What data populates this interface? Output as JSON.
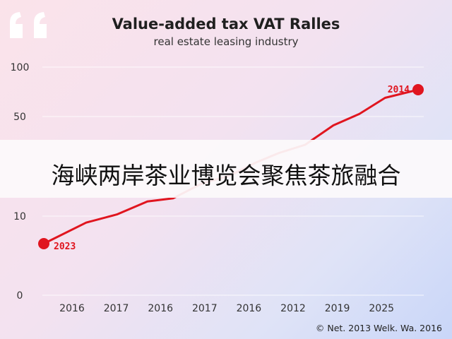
{
  "header": {
    "title": "Value-added tax VAT Ralles",
    "subtitle": "real estate leasing industry"
  },
  "banner": {
    "text": "海峡两岸茶业博览会聚焦茶旅融合"
  },
  "footer": {
    "credit": "© Net. 2013 Welk. Wa. 2016"
  },
  "colors": {
    "line": "#e0151f",
    "banner_bg": "#fbf9fa",
    "quote": "#ffffff"
  },
  "chart_data": {
    "type": "line",
    "title": "Value-added tax VAT Ralles",
    "subtitle": "real estate leasing industry",
    "categories": [
      "2016",
      "2017",
      "2016",
      "2017",
      "2016",
      "2012",
      "2019",
      "2025"
    ],
    "y_ticks": [
      {
        "label": "100",
        "value": 100
      },
      {
        "label": "50",
        "value": 50
      },
      {
        "label": "10",
        "value": 10
      },
      {
        "label": "0",
        "value": 0
      }
    ],
    "ylim": [
      0,
      100
    ],
    "grid": true,
    "series": [
      {
        "color": "#e0151f",
        "x": [
          0.0,
          0.9,
          1.55,
          2.2,
          2.75,
          3.35,
          3.95,
          4.5,
          5.0,
          5.55,
          6.15,
          6.7,
          7.25,
          7.95
        ],
        "y": [
          0.0,
          1.3,
          1.8,
          2.6,
          2.8,
          3.7,
          4.2,
          5.0,
          5.6,
          6.1,
          7.3,
          8.0,
          9.0,
          9.5
        ]
      }
    ],
    "annotations": [
      {
        "text": "2023",
        "point_index": 0
      },
      {
        "text": "2014",
        "point_index": 13
      }
    ]
  }
}
